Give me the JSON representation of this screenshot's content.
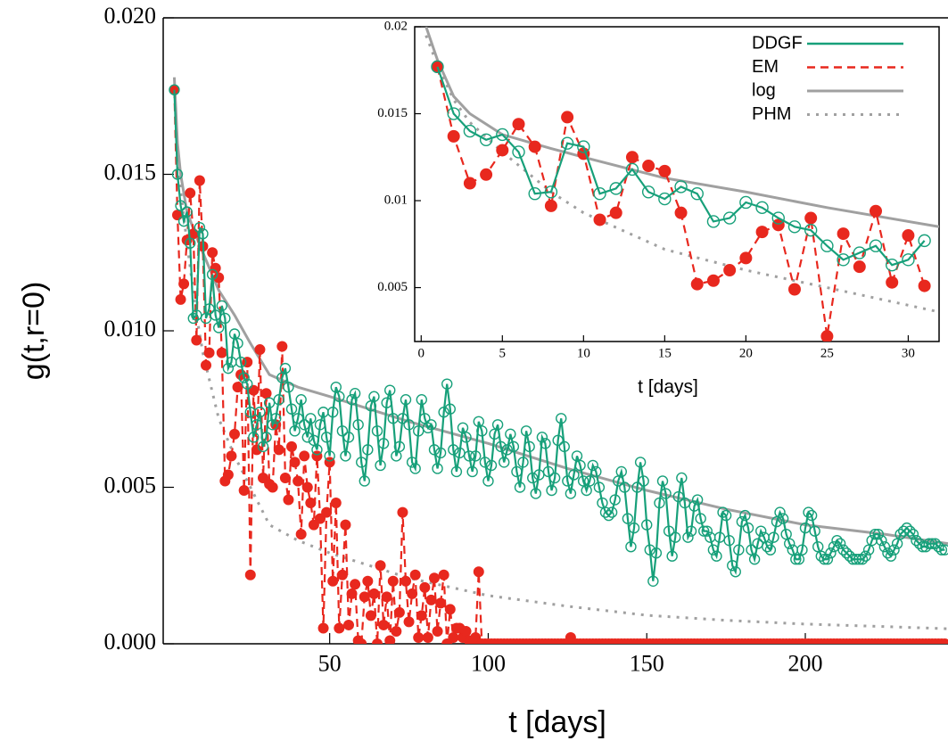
{
  "chart_data": [
    {
      "type": "line",
      "xlabel": "t [days]",
      "ylabel": "g(t,r=0)",
      "xlim": [
        -2.5,
        245
      ],
      "ylim": [
        0,
        0.02
      ],
      "xticks": [
        50,
        100,
        150,
        200
      ],
      "yticks": [
        {
          "value": 0,
          "label": "0.000"
        },
        {
          "value": 0.005,
          "label": "0.005"
        },
        {
          "value": 0.01,
          "label": "0.010"
        },
        {
          "value": 0.015,
          "label": "0.015"
        },
        {
          "value": 0.02,
          "label": "0.020"
        }
      ],
      "x": [
        1,
        2,
        3,
        4,
        5,
        6,
        7,
        8,
        9,
        10,
        11,
        12,
        13,
        14,
        15,
        16,
        17,
        18,
        19,
        20,
        21,
        22,
        23,
        24,
        25,
        26,
        27,
        28,
        29,
        30,
        31,
        32,
        33,
        34,
        35,
        36,
        37,
        38,
        39,
        40,
        41,
        42,
        43,
        44,
        45,
        46,
        47,
        48,
        49,
        50,
        51,
        52,
        53,
        54,
        55,
        56,
        57,
        58,
        59,
        60,
        61,
        62,
        63,
        64,
        65,
        66,
        67,
        68,
        69,
        70,
        71,
        72,
        73,
        74,
        75,
        76,
        77,
        78,
        79,
        80,
        81,
        82,
        83,
        84,
        85,
        86,
        87,
        88,
        89,
        90,
        91,
        92,
        93,
        94,
        95,
        96,
        97,
        98,
        99,
        100,
        101,
        102,
        103,
        104,
        105,
        106,
        107,
        108,
        109,
        110,
        111,
        112,
        113,
        114,
        115,
        116,
        117,
        118,
        119,
        120,
        121,
        122,
        123,
        124,
        125,
        126,
        127,
        128,
        129,
        130,
        131,
        132,
        133,
        134,
        135,
        136,
        137,
        138,
        139,
        140,
        141,
        142,
        143,
        144,
        145,
        146,
        147,
        148,
        149,
        150,
        151,
        152,
        153,
        154,
        155,
        156,
        157,
        158,
        159,
        160,
        161,
        162,
        163,
        164,
        165,
        166,
        167,
        168,
        169,
        170,
        171,
        172,
        173,
        174,
        175,
        176,
        177,
        178,
        179,
        180,
        181,
        182,
        183,
        184,
        185,
        186,
        187,
        188,
        189,
        190,
        191,
        192,
        193,
        194,
        195,
        196,
        197,
        198,
        199,
        200,
        201,
        202,
        203,
        204,
        205,
        206,
        207,
        208,
        209,
        210,
        211,
        212,
        213,
        214,
        215,
        216,
        217,
        218,
        219,
        220,
        221,
        222,
        223,
        224,
        225,
        226,
        227,
        228,
        229,
        230,
        231,
        232,
        233,
        234,
        235,
        236,
        237,
        238,
        239,
        240,
        241,
        242,
        243,
        244
      ],
      "series": [
        {
          "color": "#a0a0a0",
          "line_style": "solid",
          "marker": "none",
          "x": [
            1,
            2,
            3,
            5,
            8,
            10,
            15,
            20,
            25,
            31,
            40,
            50,
            75,
            100,
            125,
            150,
            175,
            200,
            225,
            245
          ],
          "values": [
            0.0181,
            0.016,
            0.015,
            0.0138,
            0.013,
            0.0125,
            0.0113,
            0.0105,
            0.0096,
            0.0086,
            0.0082,
            0.0079,
            0.0071,
            0.0064,
            0.0056,
            0.0049,
            0.0043,
            0.0038,
            0.0035,
            0.0032
          ]
        },
        {
          "color": "#a0a0a0",
          "line_style": "dotted",
          "marker": "none",
          "x": [
            1,
            2,
            3,
            5,
            8,
            10,
            15,
            20,
            25,
            31,
            40,
            50,
            75,
            100,
            125,
            150,
            175,
            200,
            225,
            245
          ],
          "values": [
            0.0178,
            0.0158,
            0.0145,
            0.0128,
            0.0105,
            0.0093,
            0.0072,
            0.006,
            0.005,
            0.0038,
            0.0033,
            0.0029,
            0.0021,
            0.00154,
            0.0012,
            0.00091,
            0.00075,
            0.00063,
            0.00055,
            0.00048
          ]
        },
        {
          "color": "#e8281e",
          "line_style": "dashed",
          "marker": "filled-circle",
          "values": [
            0.0177,
            0.0137,
            0.011,
            0.0115,
            0.0129,
            0.0144,
            0.0131,
            0.0097,
            0.0148,
            0.0127,
            0.0089,
            0.0093,
            0.0125,
            0.012,
            0.0117,
            0.0093,
            0.0052,
            0.0054,
            0.006,
            0.0067,
            0.0082,
            0.0086,
            0.0049,
            0.009,
            0.0022,
            0.0081,
            0.0062,
            0.0094,
            0.0053,
            0.008,
            0.0051,
            0.005,
            0.007,
            0.0062,
            0.0095,
            0.0053,
            0.0046,
            0.0063,
            0.0058,
            0.0052,
            0.0035,
            0.006,
            0.005,
            0.0045,
            0.0038,
            0.006,
            0.004,
            0.0005,
            0.0042,
            0.0058,
            0.002,
            0.0045,
            0.0005,
            0.0022,
            0.0038,
            0.0006,
            0.0016,
            0.0019,
            0.0001,
            0,
            0.0015,
            0.002,
            0.0009,
            0.0016,
            0,
            0.0025,
            0.0006,
            0.0015,
            0.0001,
            0.002,
            0.0004,
            0.001,
            0.0042,
            0.002,
            0.0007,
            0.0016,
            0.0022,
            0.0002,
            0.0009,
            0.0018,
            0.0002,
            0.0014,
            0.0021,
            0.0004,
            0.0013,
            0.0022,
            0,
            0.0011,
            0.0002,
            0.0005,
            0.0005,
            0.0002,
            0.0004,
            0.0001,
            0,
            0.0002,
            0.0023,
            0,
            0,
            0,
            0,
            0,
            0,
            0,
            0,
            0,
            0,
            0,
            0,
            0,
            0,
            0,
            0,
            0,
            0,
            0,
            0,
            0,
            0,
            0,
            0,
            0,
            0,
            0,
            0,
            0.0002,
            0,
            0,
            0,
            0,
            0,
            0,
            0,
            0,
            0,
            0,
            0,
            0,
            0,
            0,
            0,
            0,
            0,
            0,
            0,
            0,
            0,
            0,
            0,
            0,
            0,
            0,
            0,
            0,
            0,
            0,
            0,
            0,
            0,
            0,
            0,
            0,
            0,
            0,
            0,
            0,
            0,
            0,
            0,
            0,
            0,
            0,
            0,
            0,
            0,
            0,
            0,
            0,
            0,
            0,
            0,
            0,
            0,
            0,
            0,
            0,
            0,
            0,
            0,
            0,
            0,
            0,
            0,
            0,
            0,
            0,
            0,
            0,
            0,
            0,
            0,
            0,
            0,
            0,
            0,
            0,
            0,
            0,
            0,
            0,
            0,
            0,
            0,
            0,
            0,
            0,
            0,
            0,
            0,
            0,
            0,
            0,
            0,
            0,
            0,
            0,
            0,
            0,
            0,
            0,
            0,
            0,
            0,
            0,
            0,
            0,
            0,
            0,
            0,
            0,
            0,
            0,
            0,
            0
          ]
        },
        {
          "color": "#17a07a",
          "line_style": "solid",
          "marker": "open-circle",
          "values": [
            0.0177,
            0.015,
            0.014,
            0.0135,
            0.0138,
            0.0128,
            0.0104,
            0.0105,
            0.0133,
            0.0131,
            0.0104,
            0.0107,
            0.0118,
            0.0105,
            0.0101,
            0.0108,
            0.0104,
            0.0088,
            0.009,
            0.0099,
            0.0096,
            0.009,
            0.0085,
            0.0083,
            0.0074,
            0.0066,
            0.007,
            0.0074,
            0.0063,
            0.0066,
            0.0077,
            0.007,
            0.0072,
            0.0078,
            0.0085,
            0.0088,
            0.0082,
            0.0075,
            0.0068,
            0.0072,
            0.0078,
            0.007,
            0.0066,
            0.0072,
            0.0065,
            0.0062,
            0.007,
            0.0074,
            0.0066,
            0.006,
            0.0074,
            0.0082,
            0.0079,
            0.0068,
            0.006,
            0.0066,
            0.0078,
            0.008,
            0.007,
            0.0058,
            0.0052,
            0.0062,
            0.0076,
            0.0079,
            0.0068,
            0.0057,
            0.0064,
            0.0077,
            0.0081,
            0.0072,
            0.006,
            0.0063,
            0.0072,
            0.0078,
            0.007,
            0.0058,
            0.0056,
            0.0068,
            0.0078,
            0.0072,
            0.0069,
            0.007,
            0.0062,
            0.0056,
            0.0061,
            0.0074,
            0.0083,
            0.0075,
            0.0062,
            0.0055,
            0.0061,
            0.0069,
            0.0066,
            0.006,
            0.0055,
            0.006,
            0.0071,
            0.0068,
            0.0058,
            0.0052,
            0.0057,
            0.0067,
            0.007,
            0.0063,
            0.0058,
            0.0062,
            0.0067,
            0.0063,
            0.0055,
            0.005,
            0.0058,
            0.0068,
            0.0063,
            0.0053,
            0.0048,
            0.0054,
            0.0066,
            0.0064,
            0.0055,
            0.0049,
            0.0053,
            0.0065,
            0.0072,
            0.0063,
            0.0052,
            0.0048,
            0.0054,
            0.006,
            0.0057,
            0.0052,
            0.0049,
            0.0052,
            0.0057,
            0.0055,
            0.005,
            0.0045,
            0.0042,
            0.0041,
            0.0042,
            0.0046,
            0.0052,
            0.0055,
            0.005,
            0.004,
            0.0031,
            0.0037,
            0.005,
            0.0058,
            0.0052,
            0.0038,
            0.003,
            0.002,
            0.0029,
            0.0045,
            0.0052,
            0.0048,
            0.0036,
            0.0028,
            0.0034,
            0.0047,
            0.0053,
            0.0045,
            0.0034,
            0.0036,
            0.0044,
            0.0046,
            0.004,
            0.0036,
            0.0036,
            0.0034,
            0.003,
            0.0028,
            0.0034,
            0.0042,
            0.0041,
            0.0033,
            0.0025,
            0.0023,
            0.003,
            0.0039,
            0.0041,
            0.0037,
            0.003,
            0.0027,
            0.0032,
            0.0036,
            0.0034,
            0.0031,
            0.003,
            0.0034,
            0.0039,
            0.0042,
            0.004,
            0.0035,
            0.0032,
            0.003,
            0.0027,
            0.0027,
            0.003,
            0.0037,
            0.0042,
            0.0041,
            0.0036,
            0.0031,
            0.0028,
            0.0027,
            0.0027,
            0.0029,
            0.0031,
            0.0033,
            0.0032,
            0.003,
            0.0029,
            0.0028,
            0.0027,
            0.0027,
            0.0027,
            0.0027,
            0.0028,
            0.003,
            0.0033,
            0.0035,
            0.0035,
            0.0033,
            0.0031,
            0.0029,
            0.0028,
            0.003,
            0.0032,
            0.0035,
            0.0036,
            0.0037,
            0.0036,
            0.0035,
            0.0033,
            0.0032,
            0.0031,
            0.0031,
            0.0032,
            0.0032,
            0.0032,
            0.0031,
            0.003,
            0.003
          ]
        }
      ]
    },
    {
      "type": "line",
      "xlabel": "t [days]",
      "xlim": [
        -0.4,
        31.9
      ],
      "ylim": [
        0.0019,
        0.02
      ],
      "xticks": [
        0,
        5,
        10,
        15,
        20,
        25,
        30
      ],
      "yticks": [
        0.005,
        0.01,
        0.015,
        0.02
      ],
      "legend": "upper right",
      "x": [
        1,
        2,
        3,
        4,
        5,
        6,
        7,
        8,
        9,
        10,
        11,
        12,
        13,
        14,
        15,
        16,
        17,
        18,
        19,
        20,
        21,
        22,
        23,
        24,
        25,
        26,
        27,
        28,
        29,
        30,
        31
      ],
      "series": [
        {
          "name": "log",
          "color": "#a0a0a0",
          "line_style": "solid",
          "marker": "none",
          "x": [
            0.3,
            1,
            2,
            3,
            5,
            8,
            10,
            15,
            20,
            25,
            31.9
          ],
          "values": [
            0.02,
            0.0181,
            0.016,
            0.015,
            0.0138,
            0.013,
            0.0125,
            0.0113,
            0.0105,
            0.0096,
            0.0085
          ]
        },
        {
          "name": "PHM",
          "color": "#a0a0a0",
          "line_style": "dotted",
          "marker": "none",
          "x": [
            0.3,
            1,
            2,
            3,
            5,
            8,
            10,
            15,
            20,
            25,
            31.9
          ],
          "values": [
            0.0195,
            0.0178,
            0.0158,
            0.0145,
            0.0128,
            0.0105,
            0.0093,
            0.0072,
            0.006,
            0.005,
            0.0036
          ]
        },
        {
          "name": "EM",
          "color": "#e8281e",
          "line_style": "dashed",
          "marker": "filled-circle",
          "values": [
            0.0177,
            0.0137,
            0.011,
            0.0115,
            0.0129,
            0.0144,
            0.0131,
            0.0097,
            0.0148,
            0.0127,
            0.0089,
            0.0093,
            0.0125,
            0.012,
            0.0117,
            0.0093,
            0.0052,
            0.0054,
            0.006,
            0.0067,
            0.0082,
            0.0086,
            0.0049,
            0.009,
            0.0022,
            0.0081,
            0.0062,
            0.0094,
            0.0053,
            0.008,
            0.0051
          ]
        },
        {
          "name": "DDGF",
          "color": "#17a07a",
          "line_style": "solid",
          "marker": "open-circle",
          "values": [
            0.0177,
            0.015,
            0.014,
            0.0135,
            0.0138,
            0.0128,
            0.0104,
            0.0105,
            0.0133,
            0.0131,
            0.0104,
            0.0107,
            0.0118,
            0.0105,
            0.0101,
            0.0108,
            0.0104,
            0.0088,
            0.009,
            0.0099,
            0.0096,
            0.009,
            0.0085,
            0.0083,
            0.0074,
            0.0066,
            0.007,
            0.0074,
            0.0063,
            0.0066,
            0.0077
          ]
        }
      ]
    }
  ]
}
